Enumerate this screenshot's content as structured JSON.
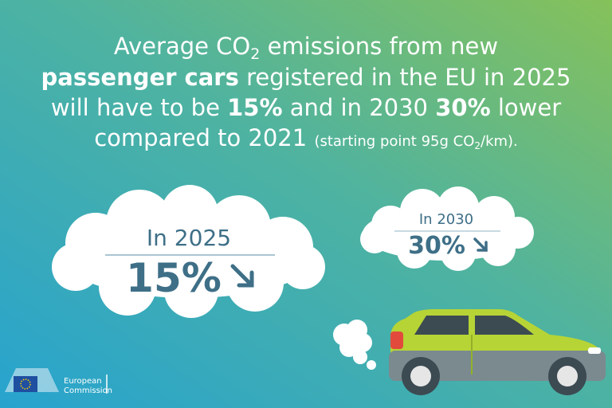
{
  "headline": {
    "lines": [
      [
        "Average CO",
        "2",
        " emissions from new"
      ],
      [
        "passenger cars",
        " registered in the EU in 2025"
      ],
      [
        "will have to be ",
        "15%",
        " and in 2030 ",
        "30%",
        " lower"
      ],
      [
        "compared to 2021 ",
        "(starting point 95g CO",
        "2",
        "/km)."
      ]
    ]
  },
  "clouds": [
    {
      "label": "In 2025",
      "value": "15%"
    },
    {
      "label": "In 2030",
      "value": "30%"
    }
  ],
  "logo": {
    "lines": [
      "European",
      "Commission"
    ]
  }
}
